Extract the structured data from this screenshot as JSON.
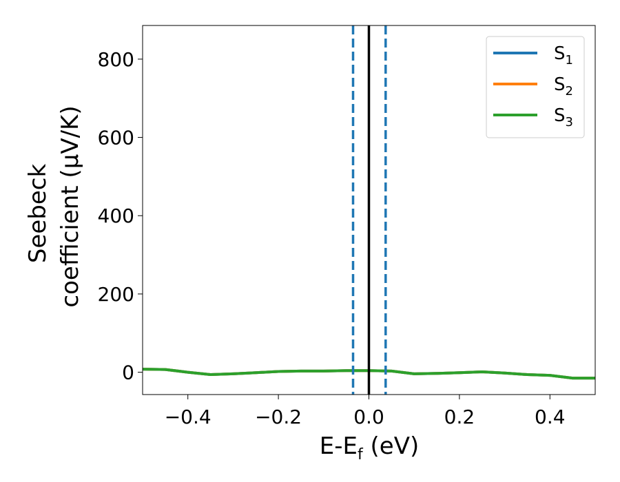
{
  "chart_data": {
    "type": "line",
    "title": "",
    "xlabel": "E-E",
    "xlabel_sub": "f",
    "xlabel_unit": " (eV)",
    "ylabel_line1": "Seebeck",
    "ylabel_line2": "coefficient  (μV/K)",
    "xlim": [
      -0.5,
      0.5
    ],
    "ylim": [
      -57,
      886
    ],
    "xticks": [
      -0.4,
      -0.2,
      0.0,
      0.2,
      0.4
    ],
    "xtick_labels": [
      "−0.4",
      "−0.2",
      "0.0",
      "0.2",
      "0.4"
    ],
    "yticks": [
      0,
      200,
      400,
      600,
      800
    ],
    "ytick_labels": [
      "0",
      "200",
      "400",
      "600",
      "800"
    ],
    "grid": false,
    "legend_position": "top-right",
    "series": [
      {
        "name": "S",
        "sub": "1",
        "color": "#1f77b4",
        "x": [
          -0.5,
          -0.45,
          -0.4,
          -0.35,
          -0.3,
          -0.25,
          -0.2,
          -0.15,
          -0.1,
          -0.05,
          0.0,
          0.05,
          0.1,
          0.15,
          0.2,
          0.25,
          0.3,
          0.35,
          0.4,
          0.45,
          0.5
        ],
        "y": [
          8,
          7,
          0,
          -6,
          -4,
          -1,
          2,
          3,
          3,
          4,
          4,
          3,
          -4,
          -3,
          -1,
          1,
          -2,
          -6,
          -8,
          -15,
          -15
        ]
      },
      {
        "name": "S",
        "sub": "2",
        "color": "#ff7f0e",
        "x": [
          -0.5,
          -0.45,
          -0.4,
          -0.35,
          -0.3,
          -0.25,
          -0.2,
          -0.15,
          -0.1,
          -0.05,
          0.0,
          0.05,
          0.1,
          0.15,
          0.2,
          0.25,
          0.3,
          0.35,
          0.4,
          0.45,
          0.5
        ],
        "y": [
          8,
          7,
          0,
          -6,
          -4,
          -1,
          2,
          3,
          3,
          4,
          4,
          3,
          -4,
          -3,
          -1,
          1,
          -2,
          -6,
          -8,
          -15,
          -15
        ]
      },
      {
        "name": "S",
        "sub": "3",
        "color": "#2ca02c",
        "x": [
          -0.5,
          -0.45,
          -0.4,
          -0.35,
          -0.3,
          -0.25,
          -0.2,
          -0.15,
          -0.1,
          -0.05,
          0.0,
          0.05,
          0.1,
          0.15,
          0.2,
          0.25,
          0.3,
          0.35,
          0.4,
          0.45,
          0.5
        ],
        "y": [
          8,
          7,
          0,
          -6,
          -4,
          -1,
          2,
          3,
          3,
          4,
          4,
          3,
          -4,
          -3,
          -1,
          1,
          -2,
          -6,
          -8,
          -15,
          -15
        ]
      }
    ],
    "vertical_lines": [
      {
        "x": -0.035,
        "style": "dashed",
        "color": "#1f77b4"
      },
      {
        "x": 0.0,
        "style": "solid",
        "color": "#000000"
      },
      {
        "x": 0.037,
        "style": "dashed",
        "color": "#1f77b4"
      }
    ]
  }
}
